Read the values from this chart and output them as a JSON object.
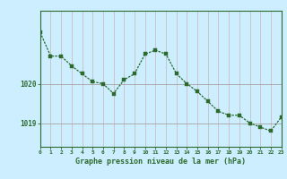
{
  "x": [
    0,
    1,
    2,
    3,
    4,
    5,
    6,
    7,
    8,
    9,
    10,
    11,
    12,
    13,
    14,
    15,
    16,
    17,
    18,
    19,
    20,
    21,
    22,
    23
  ],
  "y": [
    1021.3,
    1020.7,
    1020.7,
    1020.45,
    1020.25,
    1020.05,
    1020.0,
    1019.75,
    1020.1,
    1020.25,
    1020.75,
    1020.85,
    1020.75,
    1020.25,
    1020.0,
    1019.8,
    1019.55,
    1019.3,
    1019.2,
    1019.2,
    1019.0,
    1018.9,
    1018.8,
    1019.15
  ],
  "line_color": "#2d6a2d",
  "marker_color": "#2d6a2d",
  "bg_color": "#cceeff",
  "plot_bg_color": "#cceeff",
  "grid_color_v": "#c8b4b4",
  "grid_color_h": "#a8a0a0",
  "xlabel": "Graphe pression niveau de la mer (hPa)",
  "xlabel_color": "#2d6a2d",
  "yticks": [
    1019,
    1020
  ],
  "ylim": [
    1018.4,
    1021.85
  ],
  "xlim": [
    0,
    23
  ],
  "tick_label_color": "#2d6a2d",
  "tick_color": "#2d6a2d",
  "spine_color": "#2d6a2d",
  "marker_size": 2.8,
  "line_width": 0.9,
  "xlabel_fontsize": 6.0,
  "ytick_fontsize": 5.5,
  "xtick_fontsize": 4.5
}
